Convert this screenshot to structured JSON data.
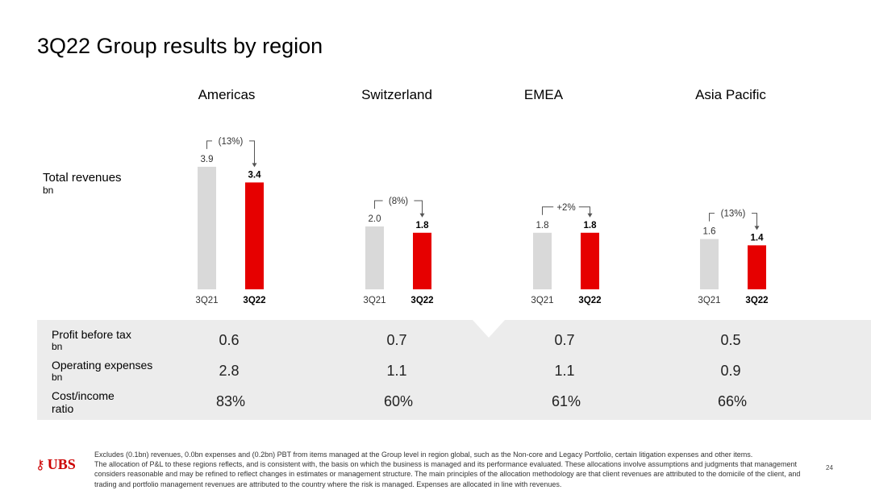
{
  "title": "3Q22 Group results by region",
  "row_label": {
    "main": "Total revenues",
    "unit": "bn"
  },
  "chart_data": {
    "type": "bar",
    "title": "",
    "categories": [
      "3Q21",
      "3Q22"
    ],
    "unit": "bn",
    "colors": {
      "3Q21": "#d9d9d9",
      "3Q22": "#e60000"
    },
    "regions": [
      {
        "name": "Americas",
        "values": [
          3.9,
          3.4
        ],
        "labels": [
          "3.9",
          "3.4"
        ],
        "change": "(13%)"
      },
      {
        "name": "Switzerland",
        "values": [
          2.0,
          1.8
        ],
        "labels": [
          "2.0",
          "1.8"
        ],
        "change": "(8%)"
      },
      {
        "name": "EMEA",
        "values": [
          1.8,
          1.8
        ],
        "labels": [
          "1.8",
          "1.8"
        ],
        "change": "+2%"
      },
      {
        "name": "Asia Pacific",
        "values": [
          1.6,
          1.4
        ],
        "labels": [
          "1.6",
          "1.4"
        ],
        "change": "(13%)"
      }
    ]
  },
  "metrics": [
    {
      "label": "Profit before tax",
      "unit": "bn",
      "values": [
        "0.6",
        "0.7",
        "0.7",
        "0.5"
      ]
    },
    {
      "label": "Operating expenses",
      "unit": "bn",
      "values": [
        "2.8",
        "1.1",
        "1.1",
        "0.9"
      ]
    },
    {
      "label": "Cost/income",
      "label2": "ratio",
      "values": [
        "83%",
        "60%",
        "61%",
        "66%"
      ]
    }
  ],
  "footer": {
    "logo": "UBS",
    "note_line1": "Excludes (0.1bn) revenues, 0.0bn expenses and (0.2bn) PBT from items managed at the Group level in region global, such as the Non-core and Legacy Portfolio, certain litigation expenses and other items.",
    "note_line2": "The allocation of P&L to these regions reflects, and is consistent with, the basis on which the business is managed and its performance evaluated. These allocations involve assumptions and judgments that management considers reasonable and may be refined to reflect changes in estimates or management structure. The main principles of the allocation methodology are that client revenues are attributed to the domicile of the client, and trading and portfolio management revenues are attributed to the country where the risk is managed. Expenses are allocated in line with revenues.",
    "page": "24"
  }
}
